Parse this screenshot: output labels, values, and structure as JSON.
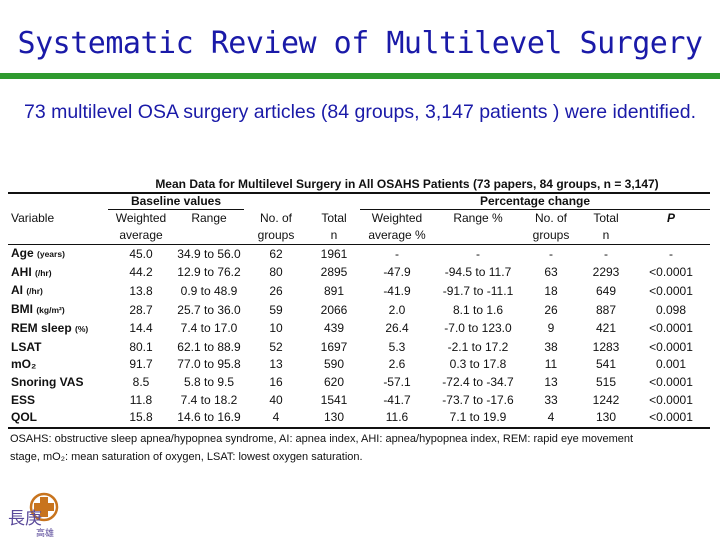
{
  "slide": {
    "title": "Systematic Review of Multilevel Surgery",
    "subtitle": "73 multilevel OSA surgery articles (84 groups, 3,147 patients ) were identified."
  },
  "table": {
    "caption": "Mean Data for Multilevel Surgery in All OSAHS Patients (73 papers, 84 groups, n = 3,147)",
    "group_baseline": "Baseline values",
    "group_change": "Percentage change",
    "header": {
      "variable": "Variable",
      "weighted1": "Weighted",
      "weighted1b": "average",
      "range1": "Range",
      "groups1": "No. of",
      "groups1b": "groups",
      "total1": "Total",
      "total1b": "n",
      "weighted2": "Weighted",
      "weighted2b": "average %",
      "range2": "Range %",
      "groups2": "No. of",
      "groups2b": "groups",
      "total2": "Total",
      "total2b": "n",
      "p": "P"
    },
    "rows": [
      {
        "name": "Age",
        "unit": "(years)",
        "wa": "45.0",
        "range": "34.9 to 56.0",
        "groups": "62",
        "total": "1961",
        "pct": "-",
        "prange": "-",
        "pgroups": "-",
        "ptotal": "-",
        "p": "-"
      },
      {
        "name": "AHI",
        "unit": "(/hr)",
        "wa": "44.2",
        "range": "12.9 to 76.2",
        "groups": "80",
        "total": "2895",
        "pct": "-47.9",
        "prange": "-94.5 to 11.7",
        "pgroups": "63",
        "ptotal": "2293",
        "p": "<0.0001"
      },
      {
        "name": "AI",
        "unit": "(/hr)",
        "wa": "13.8",
        "range": "0.9 to 48.9",
        "groups": "26",
        "total": "891",
        "pct": "-41.9",
        "prange": "-91.7 to -11.1",
        "pgroups": "18",
        "ptotal": "649",
        "p": "<0.0001"
      },
      {
        "name": "BMI",
        "unit": "(kg/m²)",
        "wa": "28.7",
        "range": "25.7 to 36.0",
        "groups": "59",
        "total": "2066",
        "pct": "2.0",
        "prange": "8.1 to 1.6",
        "pgroups": "26",
        "ptotal": "887",
        "p": "0.098"
      },
      {
        "name": "REM sleep",
        "unit": "(%)",
        "wa": "14.4",
        "range": "7.4 to 17.0",
        "groups": "10",
        "total": "439",
        "pct": "26.4",
        "prange": "-7.0 to 123.0",
        "pgroups": "9",
        "ptotal": "421",
        "p": "<0.0001"
      },
      {
        "name": "LSAT",
        "unit": "",
        "wa": "80.1",
        "range": "62.1 to 88.9",
        "groups": "52",
        "total": "1697",
        "pct": "5.3",
        "prange": "-2.1 to 17.2",
        "pgroups": "38",
        "ptotal": "1283",
        "p": "<0.0001"
      },
      {
        "name": "mO₂",
        "unit": "",
        "wa": "91.7",
        "range": "77.0 to 95.8",
        "groups": "13",
        "total": "590",
        "pct": "2.6",
        "prange": "0.3 to 17.8",
        "pgroups": "11",
        "ptotal": "541",
        "p": "0.001"
      },
      {
        "name": "Snoring VAS",
        "unit": "",
        "wa": "8.5",
        "range": "5.8 to 9.5",
        "groups": "16",
        "total": "620",
        "pct": "-57.1",
        "prange": "-72.4 to -34.7",
        "pgroups": "13",
        "ptotal": "515",
        "p": "<0.0001"
      },
      {
        "name": "ESS",
        "unit": "",
        "wa": "11.8",
        "range": "7.4 to 18.2",
        "groups": "40",
        "total": "1541",
        "pct": "-41.7",
        "prange": "-73.7 to -17.6",
        "pgroups": "33",
        "ptotal": "1242",
        "p": "<0.0001"
      },
      {
        "name": "QOL",
        "unit": "",
        "wa": "15.8",
        "range": "14.6 to 16.9",
        "groups": "4",
        "total": "130",
        "pct": "11.6",
        "prange": "7.1 to 19.9",
        "pgroups": "4",
        "ptotal": "130",
        "p": "<0.0001"
      }
    ],
    "footnote_line1": "OSAHS: obstructive sleep apnea/hypopnea syndrome, AI: apnea index, AHI: apnea/hypopnea index, REM: rapid eye movement",
    "footnote_line2": "stage, mO₂: mean saturation of oxygen, LSAT: lowest oxygen saturation."
  },
  "logo": {
    "chars": "長庚",
    "sub": "高雄",
    "color": "#c8741e"
  }
}
